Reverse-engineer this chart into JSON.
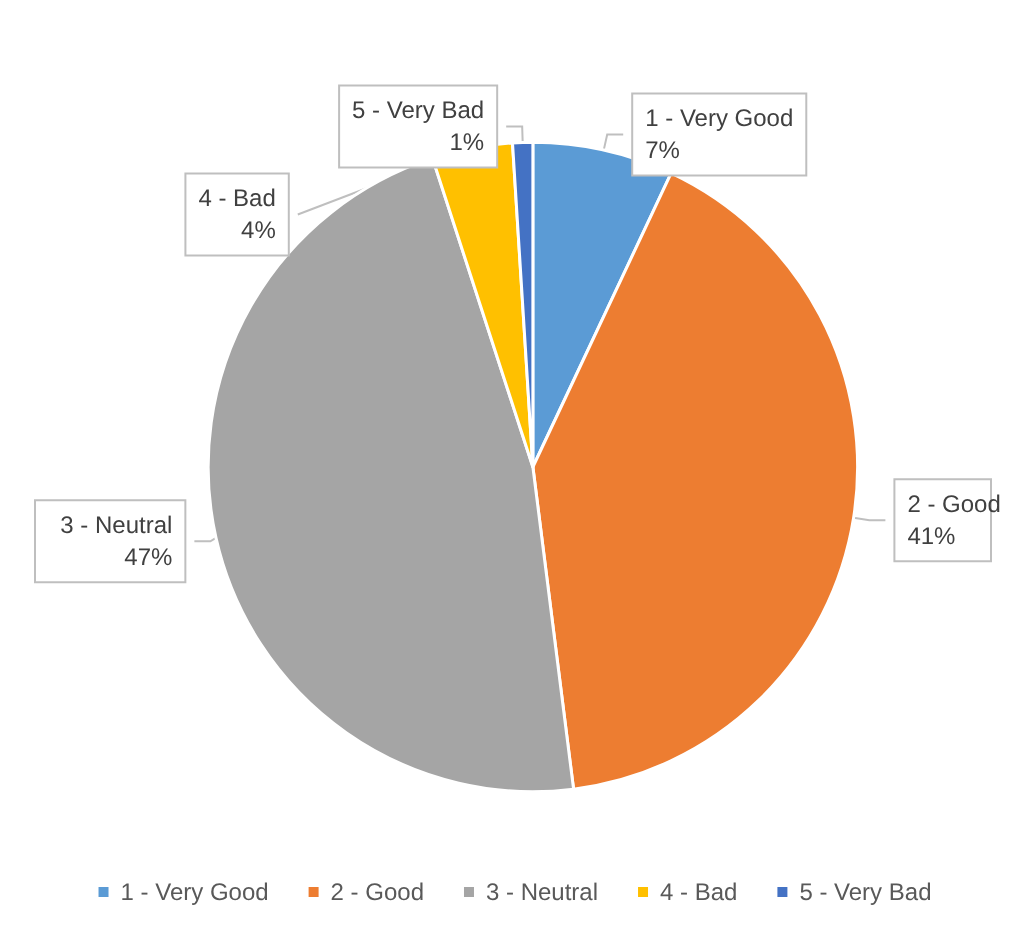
{
  "chart_data": {
    "type": "pie",
    "categories": [
      "1 - Very Good",
      "2 - Good",
      "3 - Neutral",
      "4 - Bad",
      "5 - Very Bad"
    ],
    "values": [
      7,
      41,
      47,
      4,
      1
    ],
    "colors": [
      "#5b9bd5",
      "#ed7d31",
      "#a5a5a5",
      "#ffc000",
      "#4472c4"
    ],
    "value_labels": [
      "7%",
      "41%",
      "47%",
      "4%",
      "1%"
    ],
    "legend": "bottom"
  }
}
